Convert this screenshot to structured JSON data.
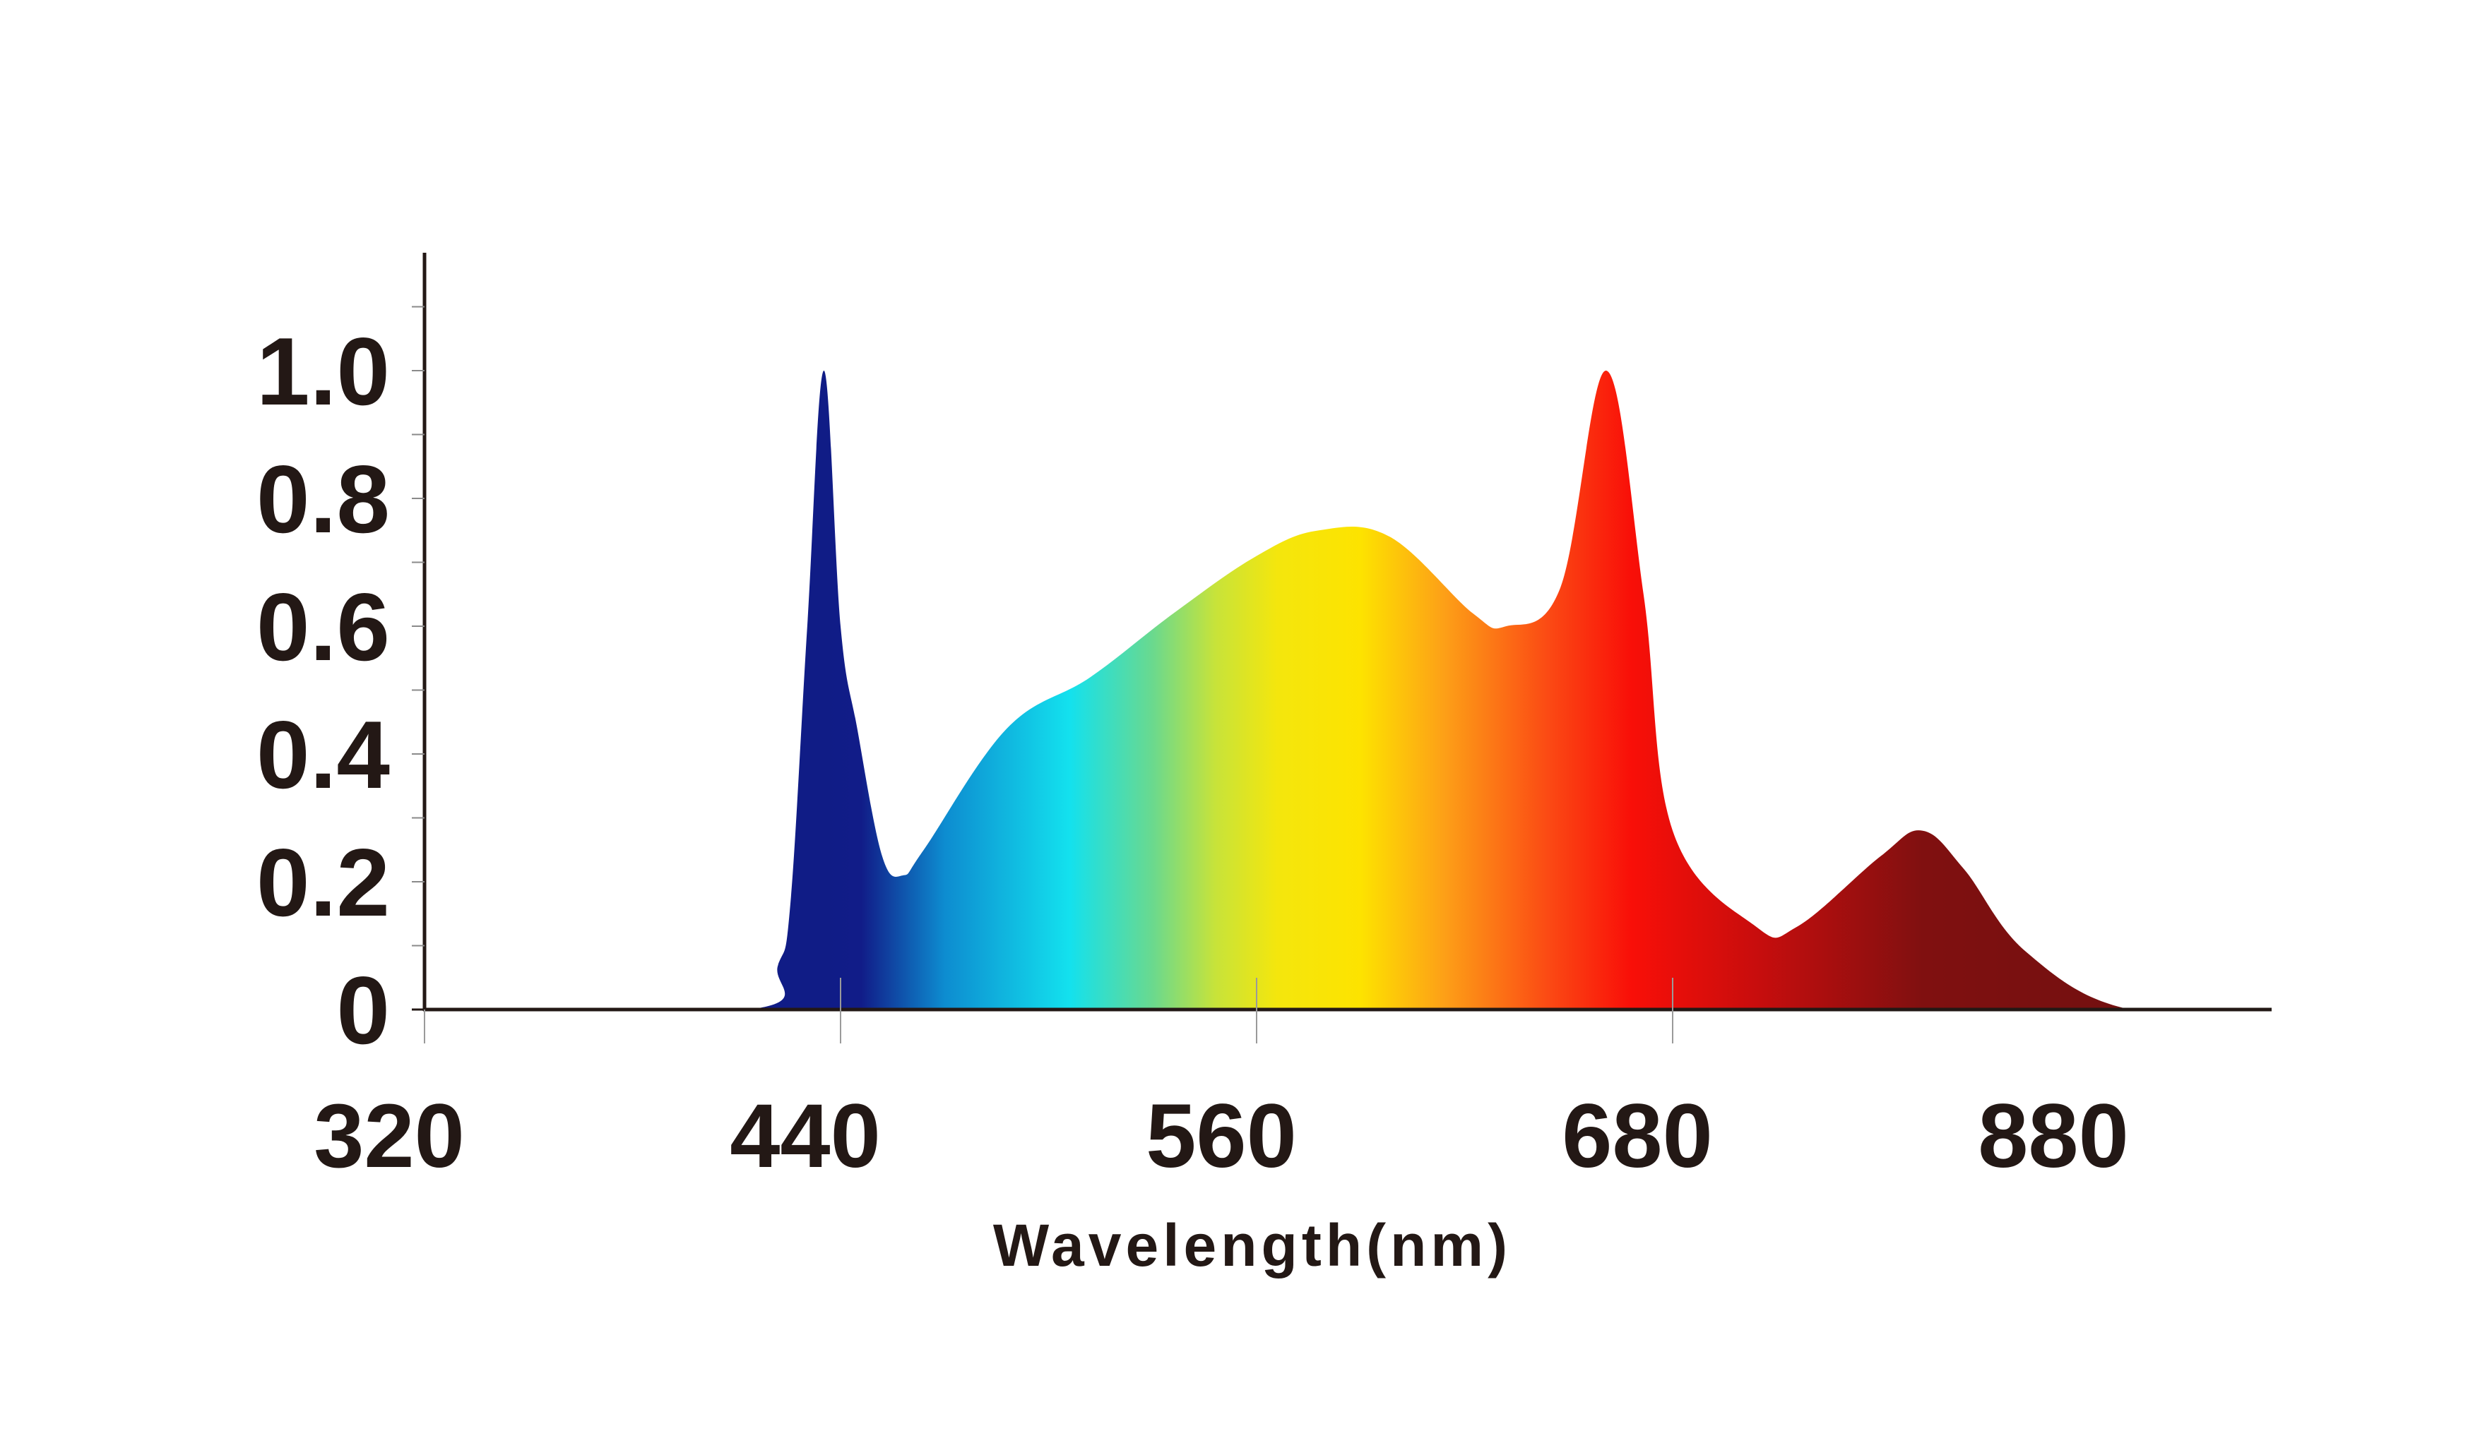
{
  "chart_data": {
    "type": "area",
    "title": "",
    "xlabel": "Wavelength(nm)",
    "ylabel": "",
    "x_tick_labels": [
      "320",
      "440",
      "560",
      "680",
      "880"
    ],
    "y_tick_labels": [
      "0",
      "0.2",
      "0.4",
      "0.6",
      "0.8",
      "1.0"
    ],
    "y_tick_values": [
      0,
      0.2,
      0.4,
      0.6,
      0.8,
      1.0
    ],
    "ylim": [
      0,
      1.2
    ],
    "grid": false,
    "legend": "none",
    "fill": "rainbow-gradient",
    "series": [
      {
        "values": [
          [
            0,
            0
          ],
          [
            0.78,
            0
          ],
          [
            0.85,
            0.07
          ],
          [
            0.88,
            0.17
          ],
          [
            0.92,
            0.6
          ],
          [
            0.96,
            1.0
          ],
          [
            1.0,
            0.6
          ],
          [
            1.04,
            0.44
          ],
          [
            1.1,
            0.24
          ],
          [
            1.15,
            0.21
          ],
          [
            1.2,
            0.25
          ],
          [
            1.4,
            0.44
          ],
          [
            1.6,
            0.52
          ],
          [
            1.8,
            0.62
          ],
          [
            2.0,
            0.71
          ],
          [
            2.15,
            0.75
          ],
          [
            2.32,
            0.74
          ],
          [
            2.52,
            0.62
          ],
          [
            2.6,
            0.6
          ],
          [
            2.73,
            0.66
          ],
          [
            2.84,
            1.0
          ],
          [
            2.93,
            0.65
          ],
          [
            3.0,
            0.28
          ],
          [
            3.2,
            0.13
          ],
          [
            3.3,
            0.13
          ],
          [
            3.5,
            0.24
          ],
          [
            3.6,
            0.28
          ],
          [
            3.7,
            0.22
          ],
          [
            3.85,
            0.09
          ],
          [
            4.1,
            0.0
          ],
          [
            4.5,
            0.0
          ]
        ]
      }
    ],
    "gradient_stops": [
      {
        "x": 0.95,
        "color": "#101c86"
      },
      {
        "x": 1.05,
        "color": "#111c88"
      },
      {
        "x": 1.25,
        "color": "#0d8cd0"
      },
      {
        "x": 1.55,
        "color": "#13e1ee"
      },
      {
        "x": 1.75,
        "color": "#6ad98e"
      },
      {
        "x": 1.9,
        "color": "#c7e33a"
      },
      {
        "x": 2.05,
        "color": "#f4e60d"
      },
      {
        "x": 2.25,
        "color": "#fde300"
      },
      {
        "x": 2.45,
        "color": "#fda017"
      },
      {
        "x": 2.7,
        "color": "#fb4a14"
      },
      {
        "x": 2.9,
        "color": "#f90f08"
      },
      {
        "x": 3.2,
        "color": "#c80d0d"
      },
      {
        "x": 3.6,
        "color": "#801010"
      },
      {
        "x": 4.1,
        "color": "#731010"
      }
    ]
  }
}
